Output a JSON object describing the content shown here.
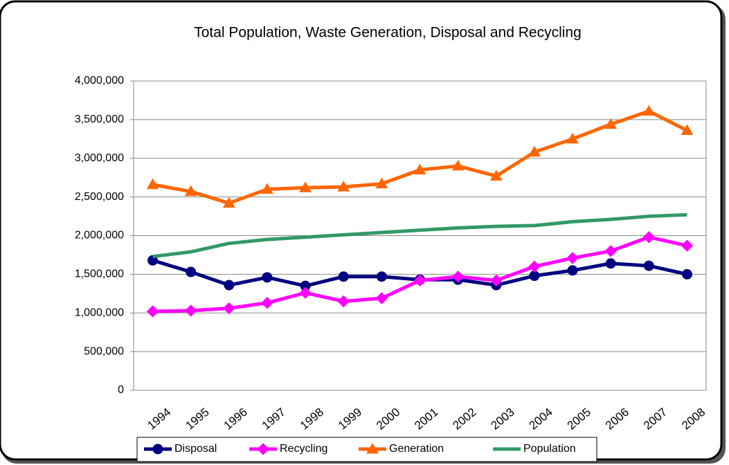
{
  "chart_data": {
    "type": "line",
    "title": "Total Population, Waste Generation, Disposal and Recycling",
    "categories": [
      "1994",
      "1995",
      "1996",
      "1997",
      "1998",
      "1999",
      "2000",
      "2001",
      "2002",
      "2003",
      "2004",
      "2005",
      "2006",
      "2007",
      "2008"
    ],
    "series": [
      {
        "name": "Disposal",
        "color": "#000080",
        "marker": "circle",
        "values": [
          1680000,
          1530000,
          1360000,
          1460000,
          1350000,
          1470000,
          1470000,
          1430000,
          1430000,
          1360000,
          1480000,
          1550000,
          1640000,
          1610000,
          1500000
        ]
      },
      {
        "name": "Recycling",
        "color": "#ff00ff",
        "marker": "diamond",
        "values": [
          1020000,
          1030000,
          1060000,
          1130000,
          1260000,
          1150000,
          1190000,
          1420000,
          1470000,
          1420000,
          1600000,
          1710000,
          1800000,
          1980000,
          1870000
        ]
      },
      {
        "name": "Generation",
        "color": "#ff6600",
        "marker": "triangle",
        "values": [
          2660000,
          2570000,
          2420000,
          2600000,
          2620000,
          2630000,
          2670000,
          2850000,
          2900000,
          2770000,
          3080000,
          3250000,
          3440000,
          3610000,
          3360000
        ]
      },
      {
        "name": "Population",
        "color": "#339966",
        "marker": "none",
        "values": [
          1730000,
          1790000,
          1900000,
          1950000,
          1980000,
          2010000,
          2040000,
          2070000,
          2100000,
          2120000,
          2130000,
          2180000,
          2210000,
          2250000,
          2270000
        ]
      }
    ],
    "ylim": [
      0,
      4000000
    ],
    "yticks": [
      0,
      {
        "value": 500000,
        "label": "500,000"
      },
      {
        "value": 1000000,
        "label": "1,000,000"
      },
      {
        "value": 1500000,
        "label": "1,500,000"
      },
      {
        "value": 2000000,
        "label": "2,000,000"
      },
      {
        "value": 2500000,
        "label": "2,500,000"
      },
      {
        "value": 3000000,
        "label": "3,000,000"
      },
      {
        "value": 3500000,
        "label": "3,500,000"
      },
      {
        "value": 4000000,
        "label": "4,000,000"
      }
    ],
    "grid": true,
    "legend": "bottom"
  }
}
